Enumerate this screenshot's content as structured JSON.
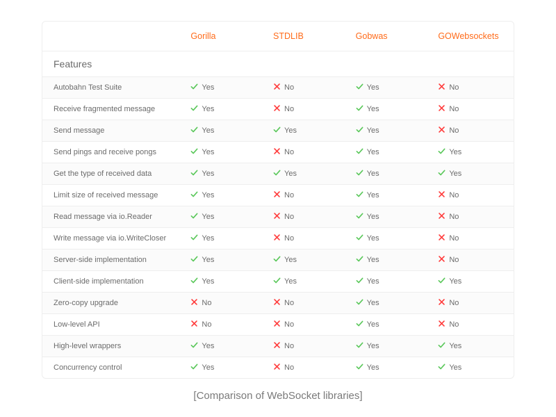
{
  "colors": {
    "accent": "#ff6b1a",
    "yes": "#5bc85b",
    "no": "#ff3b3b",
    "text": "#6b6b6b",
    "border": "#eeeeee",
    "row_alt": "#fbfbfb",
    "background": "#ffffff",
    "caption": "#7a7a7a"
  },
  "table": {
    "type": "table",
    "columns": [
      "",
      "Gorilla",
      "STDLIB",
      "Gobwas",
      "GOWebsockets"
    ],
    "section_label": "Features",
    "yes_label": "Yes",
    "no_label": "No",
    "rows": [
      {
        "feature": "Autobahn Test Suite",
        "values": [
          "yes",
          "no",
          "yes",
          "no"
        ]
      },
      {
        "feature": "Receive fragmented message",
        "values": [
          "yes",
          "no",
          "yes",
          "no"
        ]
      },
      {
        "feature": "Send message",
        "values": [
          "yes",
          "yes",
          "yes",
          "no"
        ]
      },
      {
        "feature": "Send pings and receive pongs",
        "values": [
          "yes",
          "no",
          "yes",
          "yes"
        ]
      },
      {
        "feature": "Get the type of received data",
        "values": [
          "yes",
          "yes",
          "yes",
          "yes"
        ]
      },
      {
        "feature": "Limit size of received message",
        "values": [
          "yes",
          "no",
          "yes",
          "no"
        ]
      },
      {
        "feature": "Read message via io.Reader",
        "values": [
          "yes",
          "no",
          "yes",
          "no"
        ]
      },
      {
        "feature": "Write message via io.WriteCloser",
        "values": [
          "yes",
          "no",
          "yes",
          "no"
        ]
      },
      {
        "feature": "Server-side implementation",
        "values": [
          "yes",
          "yes",
          "yes",
          "no"
        ]
      },
      {
        "feature": "Client-side implementation",
        "values": [
          "yes",
          "yes",
          "yes",
          "yes"
        ]
      },
      {
        "feature": "Zero-copy upgrade",
        "values": [
          "no",
          "no",
          "yes",
          "no"
        ]
      },
      {
        "feature": "Low-level API",
        "values": [
          "no",
          "no",
          "yes",
          "no"
        ]
      },
      {
        "feature": "High-level wrappers",
        "values": [
          "yes",
          "no",
          "yes",
          "yes"
        ]
      },
      {
        "feature": "Concurrency control",
        "values": [
          "yes",
          "no",
          "yes",
          "yes"
        ]
      }
    ]
  },
  "caption": "[Comparison of WebSocket libraries]"
}
